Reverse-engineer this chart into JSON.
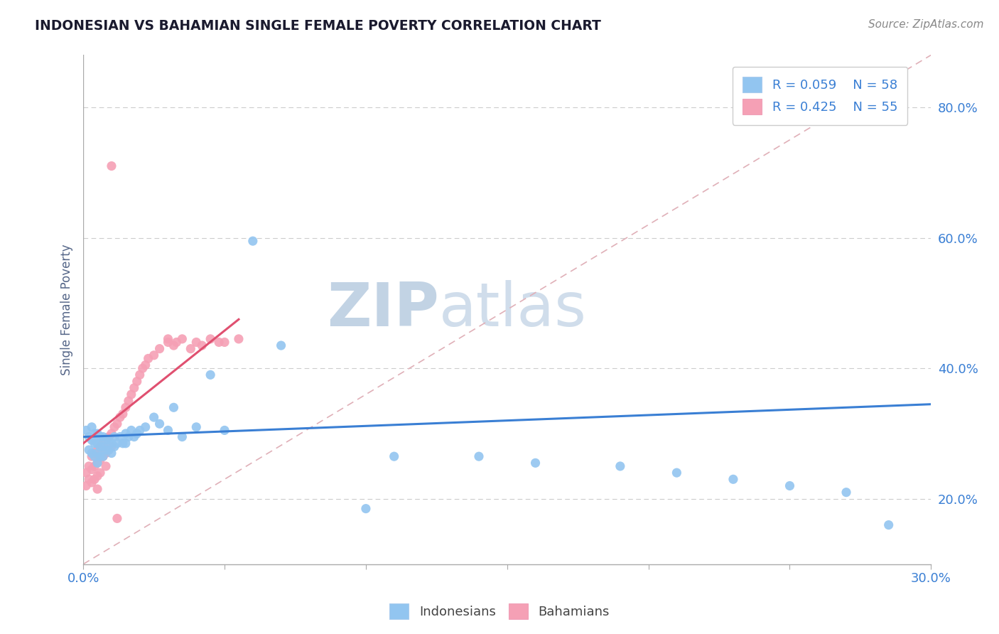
{
  "title": "INDONESIAN VS BAHAMIAN SINGLE FEMALE POVERTY CORRELATION CHART",
  "source_text": "Source: ZipAtlas.com",
  "ylabel": "Single Female Poverty",
  "xlim": [
    0.0,
    0.3
  ],
  "ylim": [
    0.1,
    0.88
  ],
  "xticks": [
    0.0,
    0.05,
    0.1,
    0.15,
    0.2,
    0.25,
    0.3
  ],
  "xticklabels": [
    "0.0%",
    "",
    "",
    "",
    "",
    "",
    "30.0%"
  ],
  "yticks": [
    0.2,
    0.4,
    0.6,
    0.8
  ],
  "yticklabels": [
    "20.0%",
    "40.0%",
    "60.0%",
    "80.0%"
  ],
  "indonesian_R": 0.059,
  "indonesian_N": 58,
  "bahamian_R": 0.425,
  "bahamian_N": 55,
  "indonesian_color": "#92c5f0",
  "bahamian_color": "#f5a0b5",
  "indonesian_line_color": "#3a7fd4",
  "bahamian_line_color": "#e05070",
  "grid_color": "#cccccc",
  "title_color": "#1a1a2e",
  "axis_label_color": "#556688",
  "tick_color": "#3a7fd4",
  "watermark_color": "#ccd8ee",
  "indonesian_x": [
    0.001,
    0.002,
    0.002,
    0.003,
    0.003,
    0.003,
    0.004,
    0.004,
    0.004,
    0.005,
    0.005,
    0.005,
    0.005,
    0.006,
    0.006,
    0.006,
    0.007,
    0.007,
    0.007,
    0.008,
    0.008,
    0.009,
    0.009,
    0.01,
    0.01,
    0.011,
    0.011,
    0.012,
    0.013,
    0.014,
    0.015,
    0.015,
    0.016,
    0.017,
    0.018,
    0.019,
    0.02,
    0.022,
    0.025,
    0.027,
    0.03,
    0.032,
    0.035,
    0.04,
    0.045,
    0.05,
    0.06,
    0.07,
    0.1,
    0.11,
    0.14,
    0.16,
    0.19,
    0.21,
    0.23,
    0.25,
    0.27,
    0.285
  ],
  "indonesian_y": [
    0.305,
    0.295,
    0.275,
    0.31,
    0.29,
    0.27,
    0.3,
    0.285,
    0.265,
    0.3,
    0.285,
    0.27,
    0.255,
    0.295,
    0.28,
    0.265,
    0.295,
    0.28,
    0.265,
    0.29,
    0.275,
    0.29,
    0.275,
    0.285,
    0.27,
    0.295,
    0.28,
    0.285,
    0.295,
    0.285,
    0.3,
    0.285,
    0.295,
    0.305,
    0.295,
    0.3,
    0.305,
    0.31,
    0.325,
    0.315,
    0.305,
    0.34,
    0.295,
    0.31,
    0.39,
    0.305,
    0.595,
    0.435,
    0.185,
    0.265,
    0.265,
    0.255,
    0.25,
    0.24,
    0.23,
    0.22,
    0.21,
    0.16
  ],
  "bahamian_x": [
    0.001,
    0.001,
    0.002,
    0.002,
    0.003,
    0.003,
    0.003,
    0.004,
    0.004,
    0.004,
    0.005,
    0.005,
    0.005,
    0.005,
    0.006,
    0.006,
    0.006,
    0.007,
    0.007,
    0.008,
    0.008,
    0.008,
    0.009,
    0.009,
    0.01,
    0.01,
    0.011,
    0.012,
    0.013,
    0.014,
    0.015,
    0.016,
    0.017,
    0.018,
    0.019,
    0.02,
    0.021,
    0.022,
    0.023,
    0.025,
    0.027,
    0.03,
    0.03,
    0.032,
    0.033,
    0.035,
    0.038,
    0.04,
    0.042,
    0.045,
    0.048,
    0.05,
    0.055,
    0.01,
    0.012
  ],
  "bahamian_y": [
    0.24,
    0.22,
    0.25,
    0.23,
    0.265,
    0.245,
    0.225,
    0.27,
    0.25,
    0.23,
    0.275,
    0.255,
    0.235,
    0.215,
    0.28,
    0.26,
    0.24,
    0.285,
    0.265,
    0.29,
    0.27,
    0.25,
    0.295,
    0.275,
    0.3,
    0.28,
    0.31,
    0.315,
    0.325,
    0.33,
    0.34,
    0.35,
    0.36,
    0.37,
    0.38,
    0.39,
    0.4,
    0.405,
    0.415,
    0.42,
    0.43,
    0.44,
    0.445,
    0.435,
    0.44,
    0.445,
    0.43,
    0.44,
    0.435,
    0.445,
    0.44,
    0.44,
    0.445,
    0.71,
    0.17
  ],
  "bah_trend_x0": 0.0,
  "bah_trend_y0": 0.285,
  "bah_trend_x1": 0.055,
  "bah_trend_y1": 0.475,
  "indo_trend_x0": 0.0,
  "indo_trend_y0": 0.295,
  "indo_trend_x1": 0.3,
  "indo_trend_y1": 0.345
}
